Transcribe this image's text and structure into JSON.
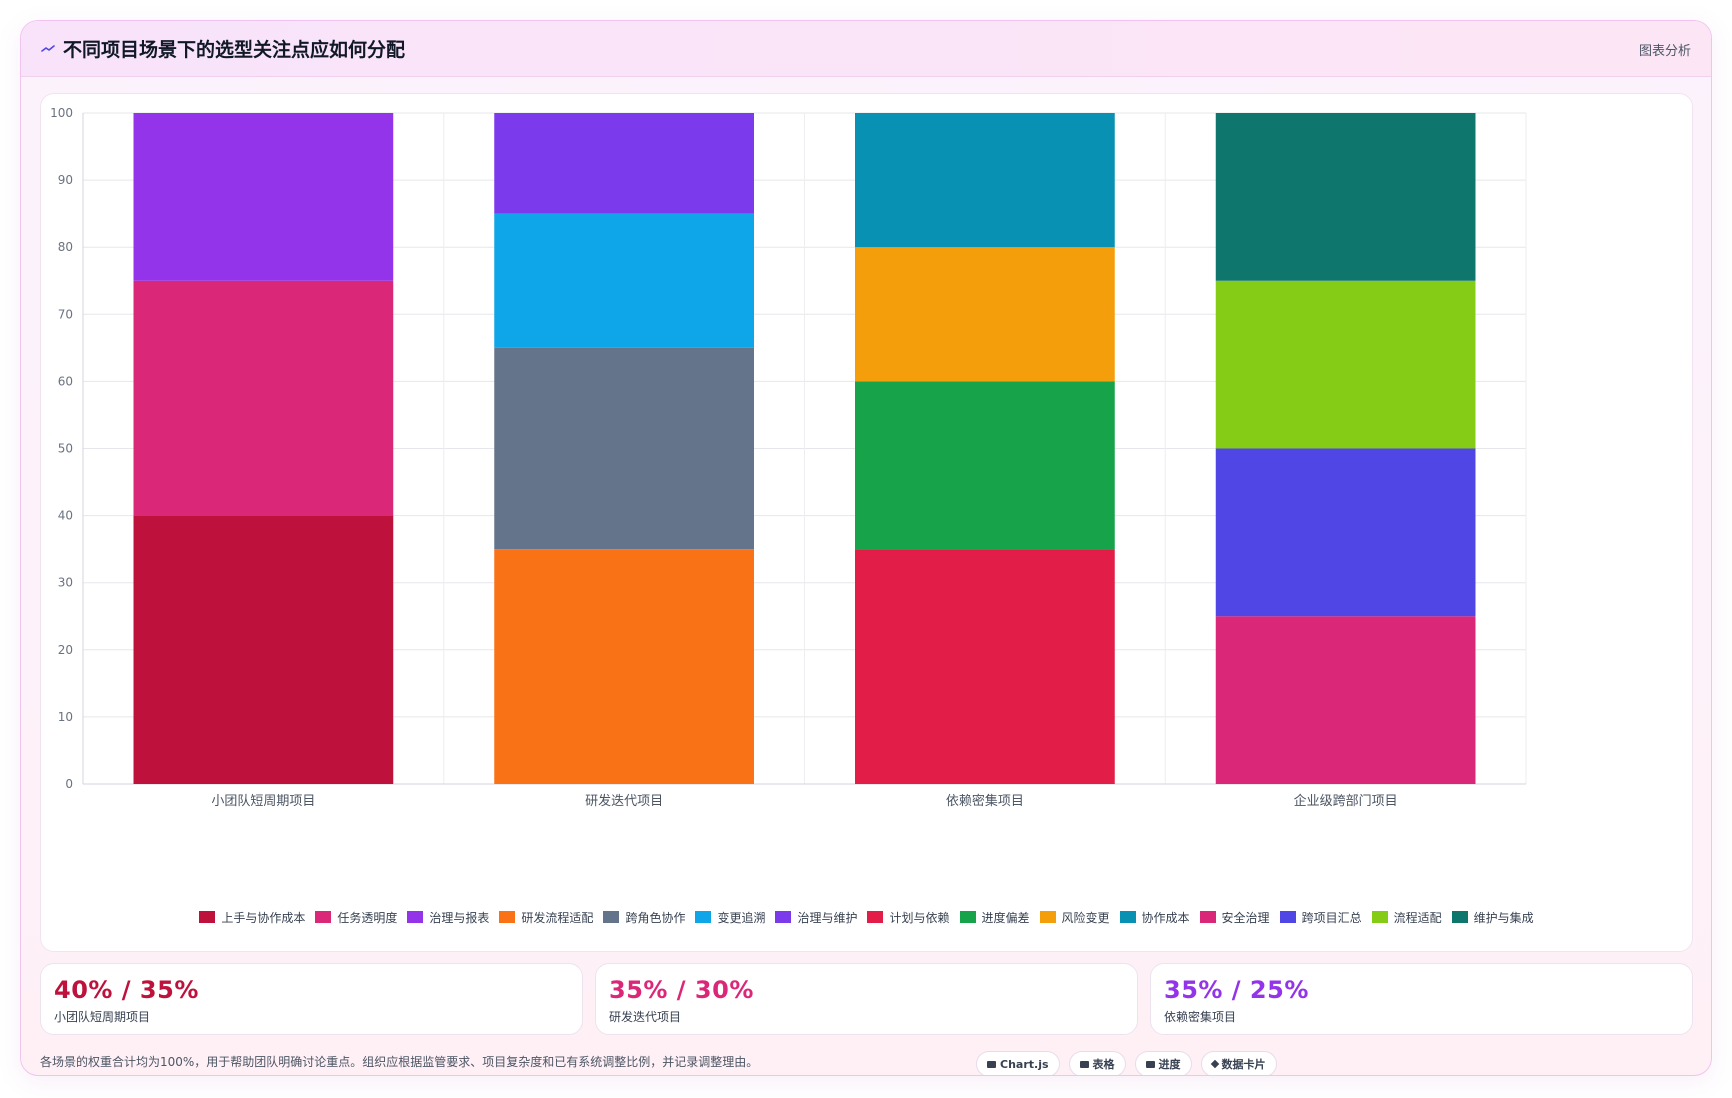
{
  "header": {
    "title": "不同项目场景下的选型关注点应如何分配",
    "tag": "图表分析",
    "icon": "trend-line-icon"
  },
  "chart_data": {
    "type": "bar",
    "stacked": true,
    "categories": [
      "小团队短周期项目",
      "研发迭代项目",
      "依赖密集项目",
      "企业级跨部门项目"
    ],
    "ylim": [
      0,
      100
    ],
    "yticks": [
      0,
      10,
      20,
      30,
      40,
      50,
      60,
      70,
      80,
      90,
      100
    ],
    "grid": true,
    "legend_position": "bottom",
    "series": [
      {
        "name": "上手与协作成本",
        "color": "#be123c",
        "values": [
          40,
          0,
          0,
          0
        ]
      },
      {
        "name": "任务透明度",
        "color": "#db2777",
        "values": [
          35,
          0,
          0,
          0
        ]
      },
      {
        "name": "治理与报表",
        "color": "#9333ea",
        "values": [
          25,
          0,
          0,
          0
        ]
      },
      {
        "name": "研发流程适配",
        "color": "#f97316",
        "values": [
          0,
          35,
          0,
          0
        ]
      },
      {
        "name": "跨角色协作",
        "color": "#64748b",
        "values": [
          0,
          30,
          0,
          0
        ]
      },
      {
        "name": "变更追溯",
        "color": "#0ea5e9",
        "values": [
          0,
          20,
          0,
          0
        ]
      },
      {
        "name": "治理与维护",
        "color": "#7c3aed",
        "values": [
          0,
          15,
          0,
          0
        ]
      },
      {
        "name": "计划与依赖",
        "color": "#e11d48",
        "values": [
          0,
          0,
          35,
          0
        ]
      },
      {
        "name": "进度偏差",
        "color": "#16a34a",
        "values": [
          0,
          0,
          25,
          0
        ]
      },
      {
        "name": "风险变更",
        "color": "#f59e0b",
        "values": [
          0,
          0,
          20,
          0
        ]
      },
      {
        "name": "协作成本",
        "color": "#0891b2",
        "values": [
          0,
          0,
          20,
          0
        ]
      },
      {
        "name": "安全治理",
        "color": "#db2777",
        "values": [
          0,
          0,
          0,
          25
        ]
      },
      {
        "name": "跨项目汇总",
        "color": "#4f46e5",
        "values": [
          0,
          0,
          0,
          25
        ]
      },
      {
        "name": "流程适配",
        "color": "#84cc16",
        "values": [
          0,
          0,
          0,
          25
        ]
      },
      {
        "name": "维护与集成",
        "color": "#0f766e",
        "values": [
          0,
          0,
          0,
          25
        ]
      }
    ]
  },
  "stats": [
    {
      "value": "40% / 35%",
      "label": "小团队短周期项目",
      "color": "#be123c"
    },
    {
      "value": "35% / 30%",
      "label": "研发迭代项目",
      "color": "#db2777"
    },
    {
      "value": "35% / 25%",
      "label": "依赖密集项目",
      "color": "#9333ea"
    }
  ],
  "footer": {
    "note": "各场景的权重合计均为100%，用于帮助团队明确讨论重点。组织应根据监管要求、项目复杂度和已有系统调整比例，并记录调整理由。",
    "badges": [
      {
        "label": "Chart.js",
        "icon": "chart-icon"
      },
      {
        "label": "表格",
        "icon": "table-icon"
      },
      {
        "label": "进度",
        "icon": "progress-icon"
      },
      {
        "label": "数据卡片",
        "icon": "sparkle-icon"
      }
    ]
  }
}
